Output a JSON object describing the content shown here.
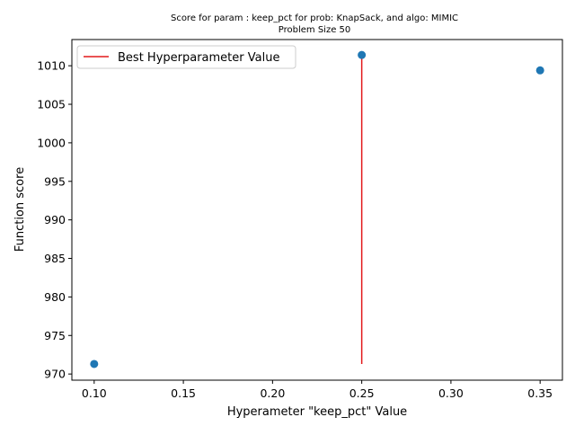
{
  "chart_data": {
    "type": "scatter",
    "title": "Score for param : keep_pct for prob: KnapSack, and algo: MIMIC",
    "subtitle": "Problem Size 50",
    "xlabel": "Hyperameter \"keep_pct\" Value",
    "ylabel": "Function score",
    "xlim": [
      0.0875,
      0.3625
    ],
    "ylim": [
      969.2,
      1013.4
    ],
    "x_ticks": [
      "0.10",
      "0.15",
      "0.20",
      "0.25",
      "0.30",
      "0.35"
    ],
    "y_ticks": [
      "970",
      "975",
      "980",
      "985",
      "990",
      "995",
      "1000",
      "1005",
      "1010"
    ],
    "grid": false,
    "legend_position": "top-left",
    "series": [
      {
        "kind": "points",
        "color": "#1f77b4",
        "x": [
          0.1,
          0.25,
          0.35
        ],
        "y": [
          971.3,
          1011.4,
          1009.4
        ]
      },
      {
        "kind": "vline",
        "name": "Best Hyperparameter Value",
        "color": "#e31a1c",
        "x": 0.25,
        "y_range": [
          971.3,
          1011.4
        ]
      }
    ]
  }
}
